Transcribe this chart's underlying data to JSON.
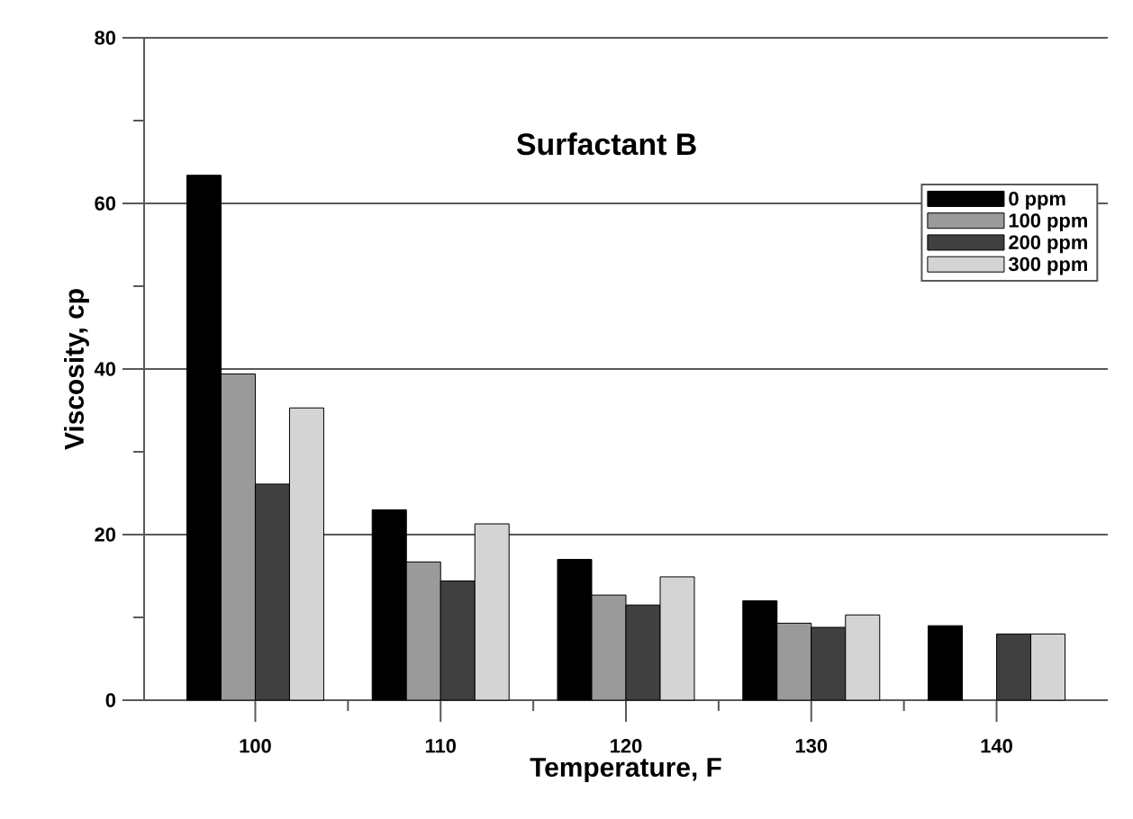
{
  "chart_data": {
    "type": "bar",
    "title": "Surfactant B",
    "xlabel": "Temperature, F",
    "ylabel": "Viscosity, cp",
    "categories": [
      "100",
      "110",
      "120",
      "130",
      "140"
    ],
    "series": [
      {
        "name": "0 ppm",
        "color": "#000000",
        "values": [
          63.4,
          23.0,
          17.0,
          12.0,
          9.0
        ]
      },
      {
        "name": "100 ppm",
        "color": "#9a9a9a",
        "values": [
          39.4,
          16.7,
          12.7,
          9.3,
          null
        ]
      },
      {
        "name": "200 ppm",
        "color": "#404040",
        "values": [
          26.1,
          14.4,
          11.5,
          8.8,
          8.0
        ]
      },
      {
        "name": "300 ppm",
        "color": "#d4d4d4",
        "values": [
          35.3,
          21.3,
          14.9,
          10.3,
          8.0
        ]
      }
    ],
    "ylim": [
      0,
      80
    ],
    "yticks": [
      0,
      20,
      40,
      60,
      80
    ],
    "grid": "y",
    "legend": "top right"
  }
}
